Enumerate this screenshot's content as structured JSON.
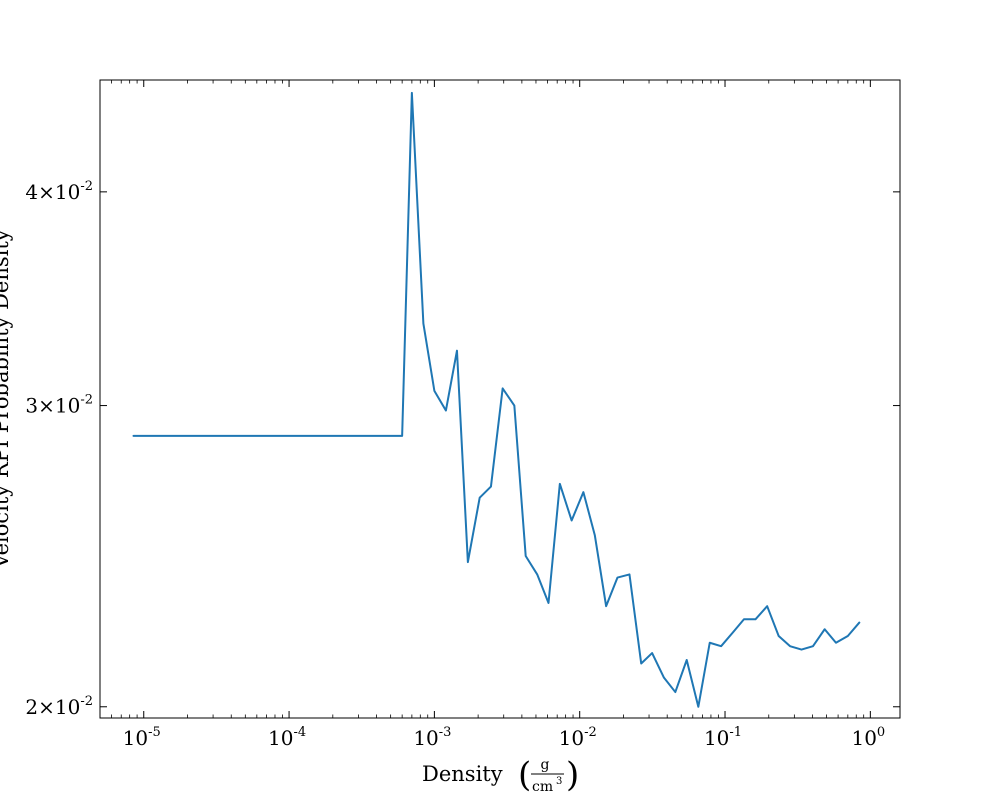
{
  "chart_data": {
    "type": "line",
    "title": "",
    "xlabel": "Density",
    "xunit": {
      "numerator": "g",
      "denominator": "cm",
      "denominator_exponent": "3"
    },
    "ylabel": "Velocity RPI Probability Density",
    "xscale": "log",
    "yscale": "log",
    "xlim": [
      5e-06,
      1.6
    ],
    "ylim": [
      0.0197,
      0.0465
    ],
    "grid": false,
    "legend": "none",
    "line_color": "#1f77b4",
    "x_ticks": [
      {
        "value": 1e-05,
        "base": "10",
        "exp": "-5"
      },
      {
        "value": 0.0001,
        "base": "10",
        "exp": "-4"
      },
      {
        "value": 0.001,
        "base": "10",
        "exp": "-3"
      },
      {
        "value": 0.01,
        "base": "10",
        "exp": "-2"
      },
      {
        "value": 0.1,
        "base": "10",
        "exp": "-1"
      },
      {
        "value": 1,
        "base": "10",
        "exp": "0"
      }
    ],
    "y_ticks": [
      {
        "value": 0.02,
        "mantissa": "2",
        "times": "×",
        "base": "10",
        "exp": "-2"
      },
      {
        "value": 0.03,
        "mantissa": "3",
        "times": "×",
        "base": "10",
        "exp": "-2"
      },
      {
        "value": 0.04,
        "mantissa": "4",
        "times": "×",
        "base": "10",
        "exp": "-2"
      }
    ],
    "series": [
      {
        "x": [
          8.5e-06,
          0.0006,
          0.0007,
          0.00084,
          0.001,
          0.0012,
          0.00143,
          0.0017,
          0.00205,
          0.00245,
          0.00295,
          0.00355,
          0.00425,
          0.0051,
          0.0061,
          0.0073,
          0.0088,
          0.0106,
          0.0127,
          0.0152,
          0.0182,
          0.022,
          0.0265,
          0.0315,
          0.038,
          0.0455,
          0.0545,
          0.0655,
          0.0785,
          0.094,
          0.113,
          0.135,
          0.162,
          0.195,
          0.234,
          0.28,
          0.336,
          0.403,
          0.485,
          0.58,
          0.7,
          0.84
        ],
        "y": [
          0.0288,
          0.0288,
          0.0457,
          0.0335,
          0.0306,
          0.0298,
          0.0323,
          0.0243,
          0.0265,
          0.0269,
          0.0307,
          0.03,
          0.0245,
          0.0239,
          0.023,
          0.027,
          0.0257,
          0.0267,
          0.0252,
          0.0229,
          0.0238,
          0.0239,
          0.0212,
          0.0215,
          0.0208,
          0.0204,
          0.0213,
          0.02,
          0.0218,
          0.0217,
          0.0221,
          0.0225,
          0.0225,
          0.0229,
          0.022,
          0.0217,
          0.0216,
          0.0217,
          0.0222,
          0.0218,
          0.022,
          0.0224
        ]
      }
    ]
  }
}
